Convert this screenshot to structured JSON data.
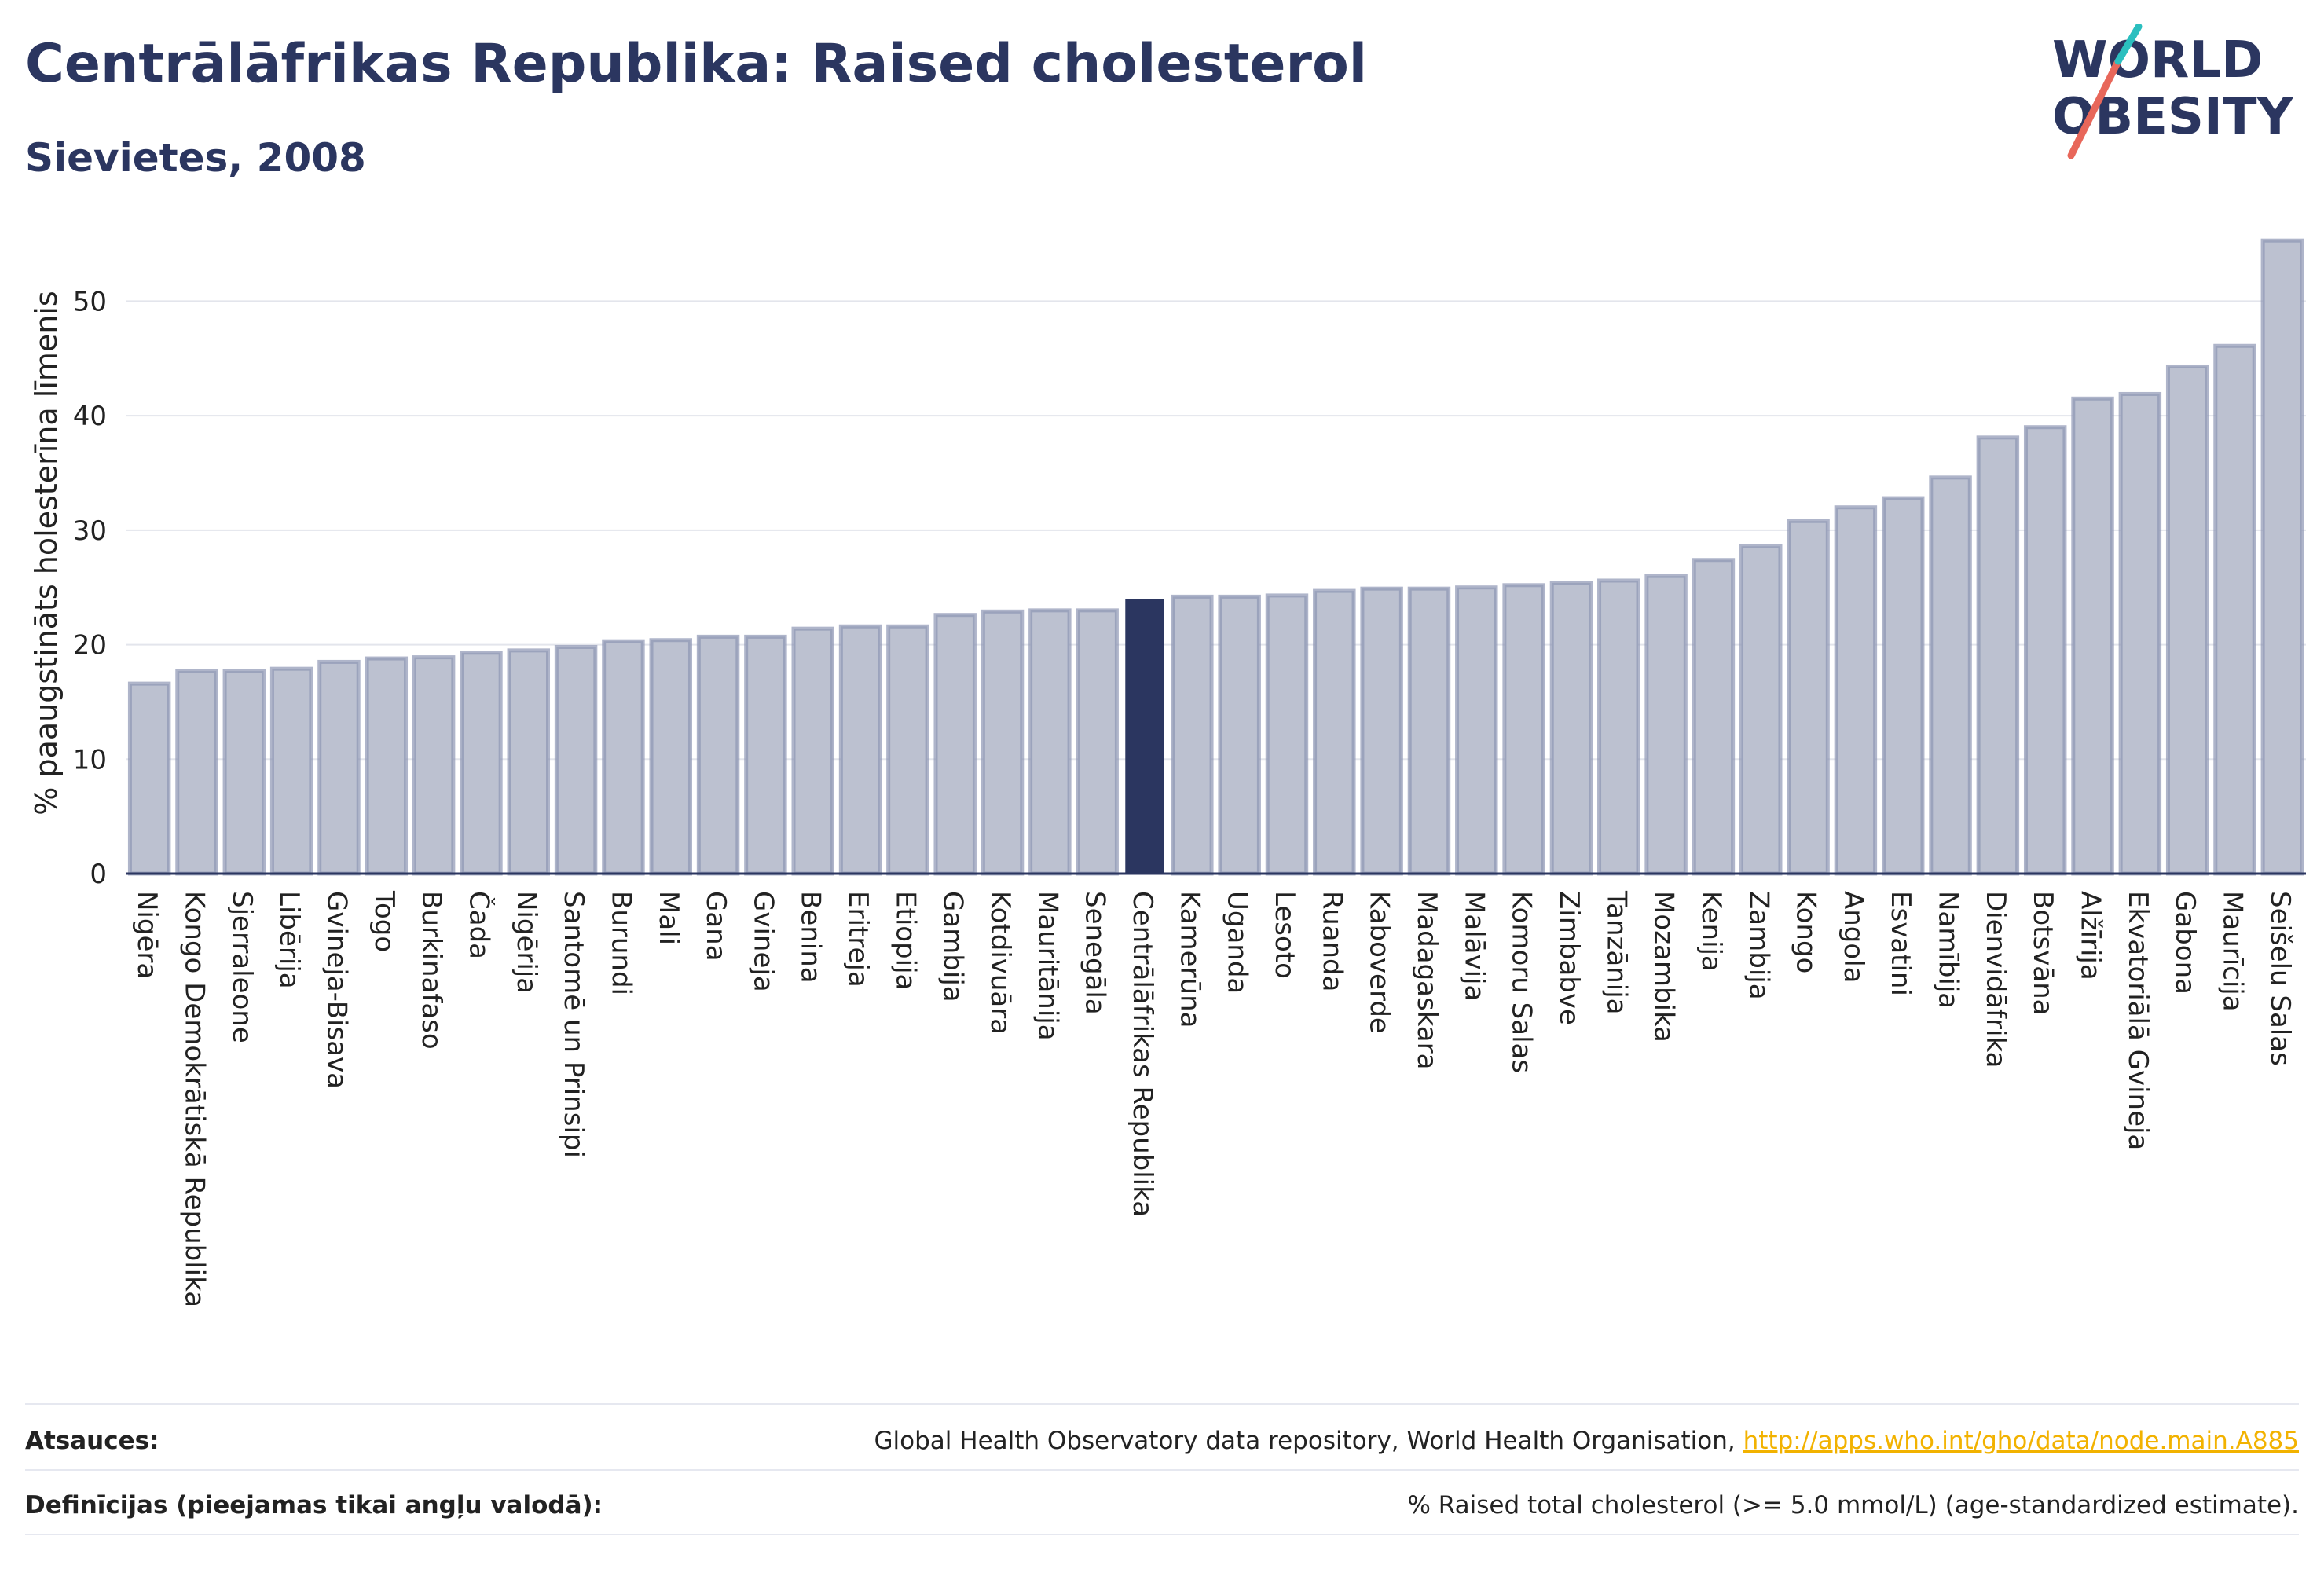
{
  "title": "Centrālāfrikas Republika: Raised cholesterol",
  "subtitle": "Sievietes, 2008",
  "logo": {
    "line1": "WORLD",
    "line2": "OBESITY",
    "accent_teal": "#2bbfbf",
    "accent_red": "#e8675a",
    "navy": "#2b3660"
  },
  "colors": {
    "bar": "#bcc1d0",
    "bar_stroke": "#8d95b3",
    "highlight": "#2b3660",
    "grid": "#e3e5ec"
  },
  "chart_data": {
    "type": "bar",
    "ylabel": "% paaugstināts holesterīna līmenis",
    "ylim": [
      0,
      56
    ],
    "yticks": [
      0,
      10,
      20,
      30,
      40,
      50
    ],
    "grid": true,
    "highlight": "Centrālāfrikas Republika",
    "categories": [
      "Nigēra",
      "Kongo Demokrātiskā Republika",
      "Sjerraleone",
      "Libērija",
      "Gvineja-Bisava",
      "Togo",
      "Burkinafaso",
      "Čada",
      "Nigērija",
      "Santomē un Prinsipi",
      "Burundi",
      "Mali",
      "Gana",
      "Gvineja",
      "Benina",
      "Eritreja",
      "Etiopija",
      "Gambija",
      "Kotdivuāra",
      "Mauritānija",
      "Senegāla",
      "Centrālāfrikas Republika",
      "Kamerūna",
      "Uganda",
      "Lesoto",
      "Ruanda",
      "Kaboverde",
      "Madagaskara",
      "Malāvija",
      "Komoru Salas",
      "Zimbabve",
      "Tanzānija",
      "Mozambika",
      "Kenija",
      "Zambija",
      "Kongo",
      "Angola",
      "Esvatini",
      "Namībija",
      "Dienvidāfrika",
      "Botsvāna",
      "Alžīrija",
      "Ekvatoriālā Gvineja",
      "Gabona",
      "Maurīcija",
      "Seišelu Salas"
    ],
    "values": [
      16.6,
      17.7,
      17.7,
      17.9,
      18.5,
      18.8,
      18.9,
      19.3,
      19.5,
      19.8,
      20.3,
      20.4,
      20.7,
      20.7,
      21.4,
      21.6,
      21.6,
      22.6,
      22.9,
      23.0,
      23.0,
      24.0,
      24.2,
      24.2,
      24.3,
      24.7,
      24.9,
      24.9,
      25.0,
      25.2,
      25.4,
      25.6,
      26.0,
      27.4,
      28.6,
      30.8,
      32.0,
      32.8,
      34.6,
      38.1,
      39.0,
      41.5,
      41.9,
      44.3,
      46.1,
      55.3
    ]
  },
  "footer": {
    "sources_label": "Atsauces:",
    "sources_text": "Global Health Observatory data repository, World Health Organisation, ",
    "sources_link": "http://apps.who.int/gho/data/node.main.A885",
    "definitions_label": "Definīcijas (pieejamas tikai angļu valodā):",
    "definitions_text": "% Raised total cholesterol (>= 5.0 mmol/L) (age-standardized estimate)."
  }
}
